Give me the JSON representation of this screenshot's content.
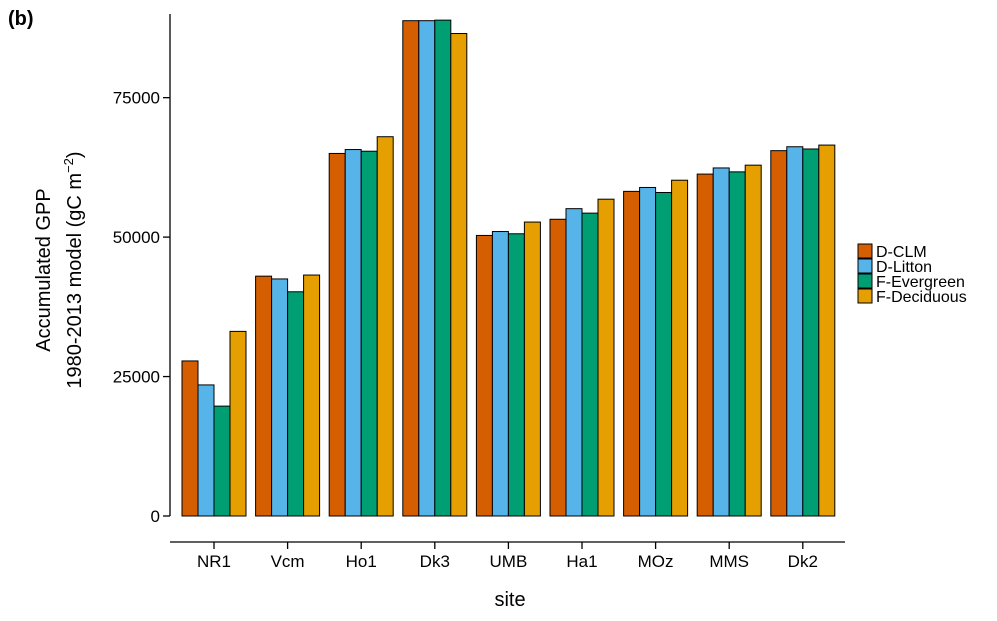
{
  "panel_label": "(b)",
  "chart_data": {
    "type": "bar",
    "xlabel": "site",
    "ylabel_line1": "Accumulated GPP",
    "ylabel_line2": "1980-2013 model (gC m",
    "ylabel_unit_exp": "−2",
    "ylabel_close": ")",
    "categories": [
      "NR1",
      "Vcm",
      "Ho1",
      "Dk3",
      "UMB",
      "Ha1",
      "MOz",
      "MMS",
      "Dk2"
    ],
    "ylim": [
      0,
      90000
    ],
    "yticks": [
      0,
      25000,
      50000,
      75000
    ],
    "ytick_labels": [
      "0",
      "25000",
      "50000",
      "75000"
    ],
    "legend_position": "right",
    "grid": false,
    "series": [
      {
        "name": "D-CLM",
        "color": "#D55E00",
        "values": [
          27800,
          43000,
          65000,
          88800,
          50300,
          53200,
          58200,
          61300,
          65500
        ]
      },
      {
        "name": "D-Litton",
        "color": "#56B4E9",
        "values": [
          23500,
          42500,
          65700,
          88800,
          51000,
          55100,
          58900,
          62400,
          66200
        ]
      },
      {
        "name": "F-Evergreen",
        "color": "#009E73",
        "values": [
          19700,
          40200,
          65400,
          88900,
          50600,
          54300,
          58000,
          61700,
          65800
        ]
      },
      {
        "name": "F-Deciduous",
        "color": "#E69F00",
        "values": [
          33100,
          43200,
          68000,
          86500,
          52700,
          56800,
          60200,
          62900,
          66500
        ]
      }
    ]
  }
}
